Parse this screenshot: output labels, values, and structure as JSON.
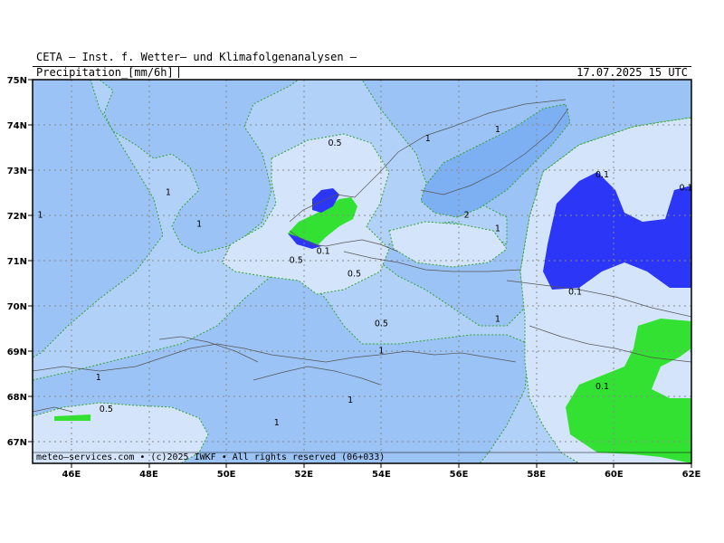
{
  "header": {
    "title": "CETA — Inst. f. Wetter— und Klimafolgenanalysen —",
    "variable": "Precipitation_[mm/6h]",
    "datetime": "17.07.2025 15 UTC"
  },
  "footer": {
    "credit": "meteo—services.com • (c)2025 IWKF • All rights reserved (06+033)"
  },
  "axes": {
    "lat_labels": [
      "75N",
      "74N",
      "73N",
      "72N",
      "71N",
      "70N",
      "69N",
      "68N",
      "67N"
    ],
    "lon_labels": [
      "46E",
      "48E",
      "50E",
      "52E",
      "54E",
      "56E",
      "58E",
      "60E",
      "62E"
    ]
  },
  "colors": {
    "level_0_1": "#d4e5fb",
    "level_0_5": "#b2d1f9",
    "level_1": "#9cc3f6",
    "level_2": "#7db0f3",
    "green_zone": "#32e132",
    "blue_zone": "#2c36f7",
    "contour": "#2ea42e"
  },
  "contour_labels": [
    {
      "text": "0.5",
      "lon": 52.8,
      "lat": 73.6
    },
    {
      "text": "1",
      "lon": 55.2,
      "lat": 73.7
    },
    {
      "text": "1",
      "lon": 57.0,
      "lat": 73.9
    },
    {
      "text": "1",
      "lon": 48.5,
      "lat": 72.5
    },
    {
      "text": "1",
      "lon": 45.2,
      "lat": 72.0
    },
    {
      "text": "1",
      "lon": 49.3,
      "lat": 71.8
    },
    {
      "text": "2",
      "lon": 56.2,
      "lat": 72.0
    },
    {
      "text": "1",
      "lon": 57.0,
      "lat": 71.7
    },
    {
      "text": "0.1",
      "lon": 59.7,
      "lat": 72.9
    },
    {
      "text": "0.1",
      "lon": 62.0,
      "lat": 72.6
    },
    {
      "text": "0.1",
      "lon": 52.5,
      "lat": 71.2
    },
    {
      "text": "0.5",
      "lon": 51.8,
      "lat": 71.0
    },
    {
      "text": "0.5",
      "lon": 53.3,
      "lat": 70.7
    },
    {
      "text": "0.1",
      "lon": 59.0,
      "lat": 70.3
    },
    {
      "text": "0.5",
      "lon": 54.0,
      "lat": 69.6
    },
    {
      "text": "1",
      "lon": 57.0,
      "lat": 69.7
    },
    {
      "text": "1",
      "lon": 54.0,
      "lat": 69.0
    },
    {
      "text": "1",
      "lon": 46.7,
      "lat": 68.4
    },
    {
      "text": "1",
      "lon": 53.2,
      "lat": 67.9
    },
    {
      "text": "0.1",
      "lon": 59.7,
      "lat": 68.2
    },
    {
      "text": "0.5",
      "lon": 46.9,
      "lat": 67.7
    },
    {
      "text": "1",
      "lon": 51.3,
      "lat": 67.4
    }
  ]
}
